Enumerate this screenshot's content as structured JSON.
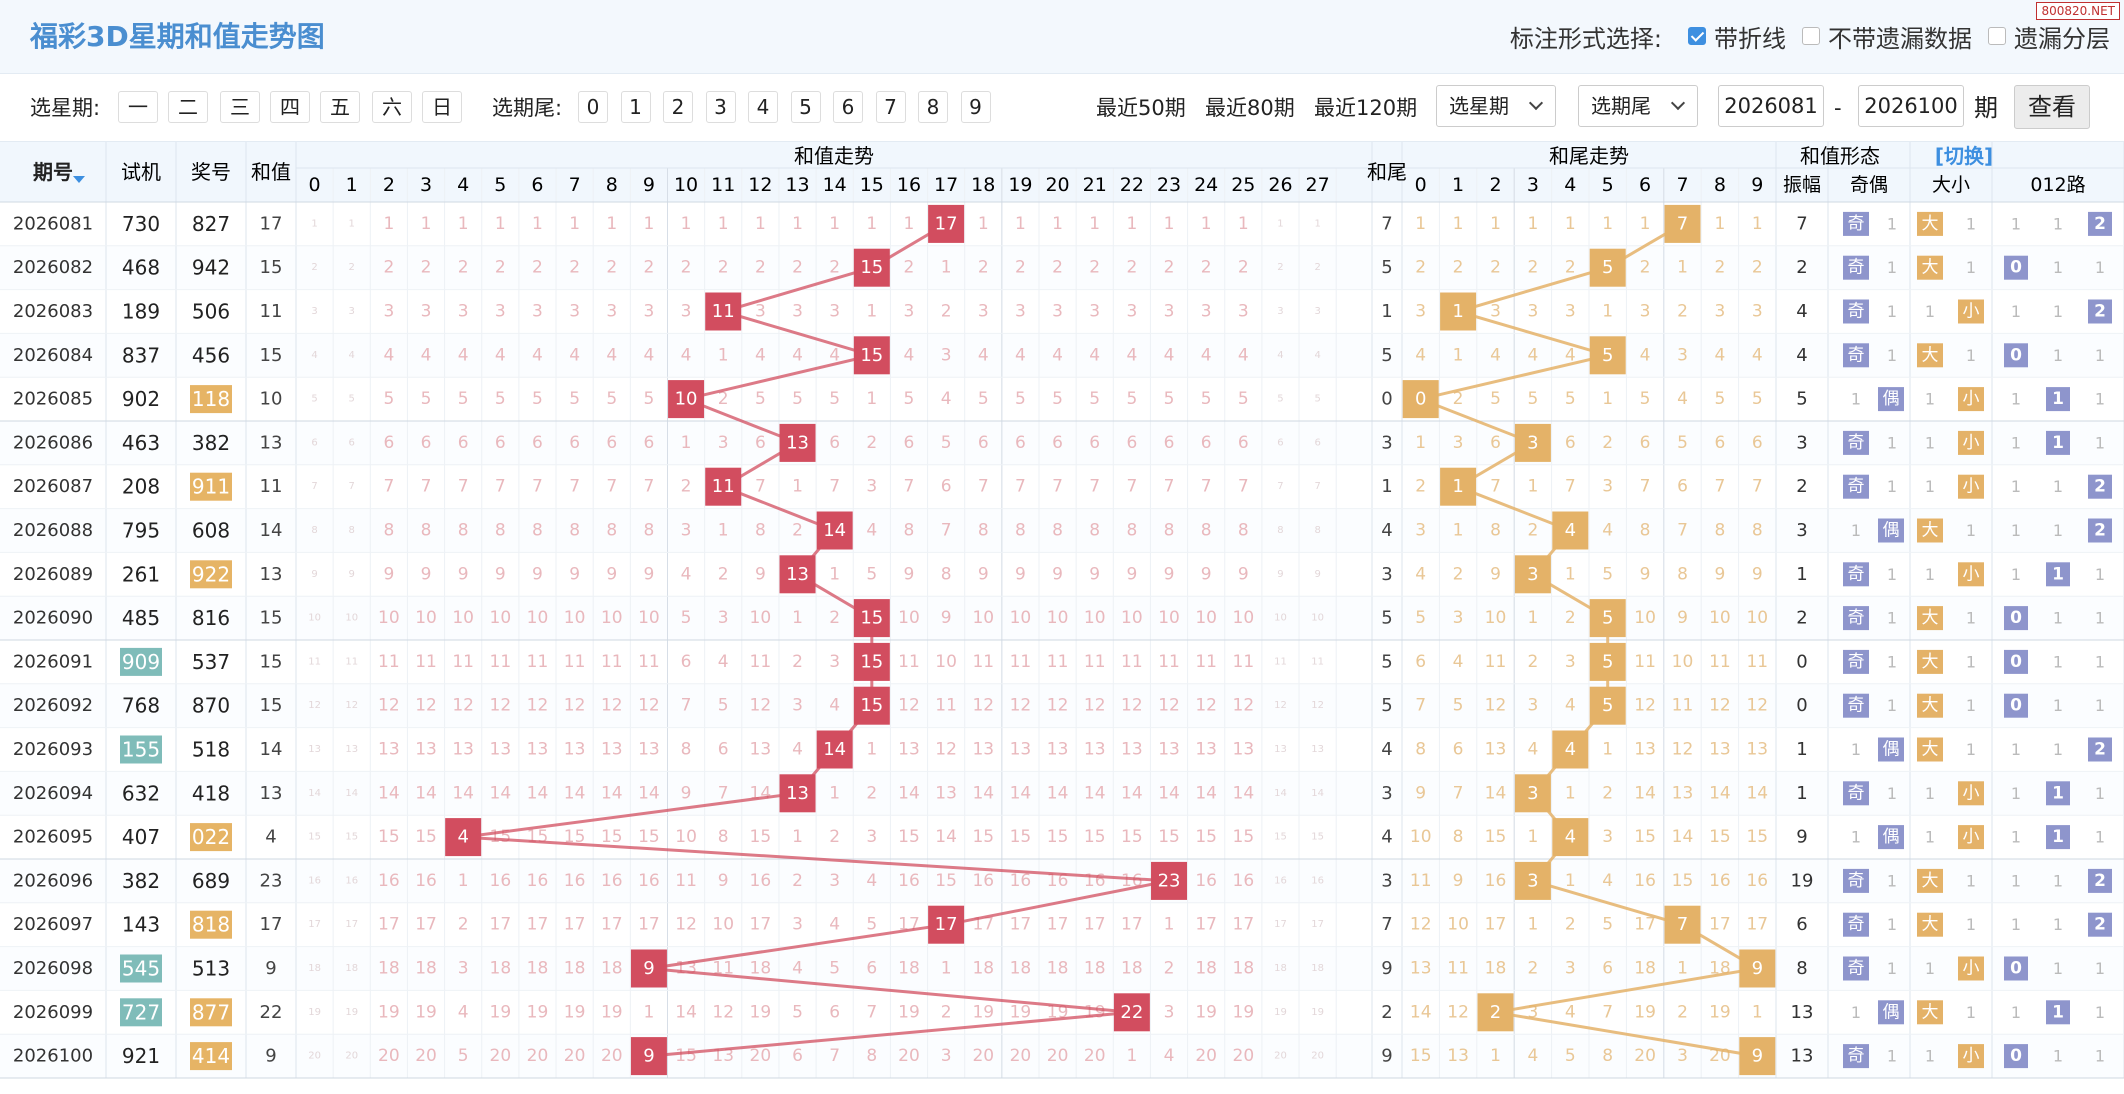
{
  "title": "福彩3D星期和值走势图",
  "watermark": "800820.NET",
  "marking": {
    "label": "标注形式选择:",
    "options": [
      {
        "label": "带折线",
        "checked": true
      },
      {
        "label": "不带遗漏数据",
        "checked": false
      },
      {
        "label": "遗漏分层",
        "checked": false
      }
    ]
  },
  "filters": {
    "weekday_label": "选星期:",
    "weekdays": [
      "一",
      "二",
      "三",
      "四",
      "五",
      "六",
      "日"
    ],
    "tail_label": "选期尾:",
    "tails": [
      "0",
      "1",
      "2",
      "3",
      "4",
      "5",
      "6",
      "7",
      "8",
      "9"
    ],
    "quick": [
      "最近50期",
      "最近80期",
      "最近120期"
    ],
    "weekday_select": "选星期",
    "tail_select": "选期尾",
    "from": "2026081",
    "dash": "-",
    "to": "2026100",
    "period_label": "期",
    "view_button": "查看"
  },
  "headers": {
    "issue": "期号",
    "trial": "试机",
    "prize": "奖号",
    "sum": "和值",
    "sum_trend": "和值走势",
    "tail": "和尾",
    "tail_trend": "和尾走势",
    "form": "和值形态",
    "switch": "[切换]",
    "amp": "振幅",
    "oe": "奇偶",
    "bs": "大小",
    "road": "012路",
    "sum_cols": [
      "0",
      "1",
      "2",
      "3",
      "4",
      "5",
      "6",
      "7",
      "8",
      "9",
      "10",
      "11",
      "12",
      "13",
      "14",
      "15",
      "16",
      "17",
      "18",
      "19",
      "20",
      "21",
      "22",
      "23",
      "24",
      "25",
      "26",
      "27"
    ],
    "tail_cols": [
      "0",
      "1",
      "2",
      "3",
      "4",
      "5",
      "6",
      "7",
      "8",
      "9"
    ]
  },
  "labels": {
    "odd": "奇",
    "even": "偶",
    "big": "大",
    "small": "小"
  },
  "colors": {
    "header_blue": "#4a8ed0",
    "sum_red": "#d24d5f",
    "tail_gold": "#e4b268",
    "trial_teal": "#7fbcb9",
    "prize_gold": "#e6b465",
    "form_blue": "#8e95cc"
  },
  "rows": [
    {
      "issue": "2026081",
      "trial": "730",
      "prize": "827",
      "sum": 17,
      "tail": 7,
      "amp": "7",
      "trial_hl": false,
      "prize_hl": false
    },
    {
      "issue": "2026082",
      "trial": "468",
      "prize": "942",
      "sum": 15,
      "tail": 5,
      "amp": "2",
      "trial_hl": false,
      "prize_hl": false
    },
    {
      "issue": "2026083",
      "trial": "189",
      "prize": "506",
      "sum": 11,
      "tail": 1,
      "amp": "4",
      "trial_hl": false,
      "prize_hl": false
    },
    {
      "issue": "2026084",
      "trial": "837",
      "prize": "456",
      "sum": 15,
      "tail": 5,
      "amp": "4",
      "trial_hl": false,
      "prize_hl": false
    },
    {
      "issue": "2026085",
      "trial": "902",
      "prize": "118",
      "sum": 10,
      "tail": 0,
      "amp": "5",
      "trial_hl": false,
      "prize_hl": true
    },
    {
      "issue": "2026086",
      "trial": "463",
      "prize": "382",
      "sum": 13,
      "tail": 3,
      "amp": "3",
      "trial_hl": false,
      "prize_hl": false
    },
    {
      "issue": "2026087",
      "trial": "208",
      "prize": "911",
      "sum": 11,
      "tail": 1,
      "amp": "2",
      "trial_hl": false,
      "prize_hl": true
    },
    {
      "issue": "2026088",
      "trial": "795",
      "prize": "608",
      "sum": 14,
      "tail": 4,
      "amp": "3",
      "trial_hl": false,
      "prize_hl": false
    },
    {
      "issue": "2026089",
      "trial": "261",
      "prize": "922",
      "sum": 13,
      "tail": 3,
      "amp": "1",
      "trial_hl": false,
      "prize_hl": true
    },
    {
      "issue": "2026090",
      "trial": "485",
      "prize": "816",
      "sum": 15,
      "tail": 5,
      "amp": "2",
      "trial_hl": false,
      "prize_hl": false
    },
    {
      "issue": "2026091",
      "trial": "909",
      "prize": "537",
      "sum": 15,
      "tail": 5,
      "amp": "0",
      "trial_hl": true,
      "prize_hl": false
    },
    {
      "issue": "2026092",
      "trial": "768",
      "prize": "870",
      "sum": 15,
      "tail": 5,
      "amp": "0",
      "trial_hl": false,
      "prize_hl": false
    },
    {
      "issue": "2026093",
      "trial": "155",
      "prize": "518",
      "sum": 14,
      "tail": 4,
      "amp": "1",
      "trial_hl": true,
      "prize_hl": false
    },
    {
      "issue": "2026094",
      "trial": "632",
      "prize": "418",
      "sum": 13,
      "tail": 3,
      "amp": "1",
      "trial_hl": false,
      "prize_hl": false
    },
    {
      "issue": "2026095",
      "trial": "407",
      "prize": "022",
      "sum": 4,
      "tail": 4,
      "amp": "9",
      "trial_hl": false,
      "prize_hl": true
    },
    {
      "issue": "2026096",
      "trial": "382",
      "prize": "689",
      "sum": 23,
      "tail": 3,
      "amp": "19",
      "trial_hl": false,
      "prize_hl": false
    },
    {
      "issue": "2026097",
      "trial": "143",
      "prize": "818",
      "sum": 17,
      "tail": 7,
      "amp": "6",
      "trial_hl": false,
      "prize_hl": true
    },
    {
      "issue": "2026098",
      "trial": "545",
      "prize": "513",
      "sum": 9,
      "tail": 9,
      "amp": "8",
      "trial_hl": true,
      "prize_hl": false
    },
    {
      "issue": "2026099",
      "trial": "727",
      "prize": "877",
      "sum": 22,
      "tail": 2,
      "amp": "13",
      "trial_hl": true,
      "prize_hl": true
    },
    {
      "issue": "2026100",
      "trial": "921",
      "prize": "414",
      "sum": 9,
      "tail": 9,
      "amp": "13",
      "trial_hl": false,
      "prize_hl": true
    }
  ],
  "chart_data": {
    "type": "line",
    "title": "和值走势",
    "x": [
      "2026081",
      "2026082",
      "2026083",
      "2026084",
      "2026085",
      "2026086",
      "2026087",
      "2026088",
      "2026089",
      "2026090",
      "2026091",
      "2026092",
      "2026093",
      "2026094",
      "2026095",
      "2026096",
      "2026097",
      "2026098",
      "2026099",
      "2026100"
    ],
    "series": [
      {
        "name": "和值走势",
        "values": [
          17,
          15,
          11,
          15,
          10,
          13,
          11,
          14,
          13,
          15,
          15,
          15,
          14,
          13,
          4,
          23,
          17,
          9,
          22,
          9
        ]
      },
      {
        "name": "和尾走势",
        "values": [
          7,
          5,
          1,
          5,
          0,
          3,
          1,
          4,
          3,
          5,
          5,
          5,
          4,
          3,
          4,
          3,
          7,
          9,
          2,
          9
        ]
      }
    ],
    "xlim": [
      0,
      27
    ]
  }
}
